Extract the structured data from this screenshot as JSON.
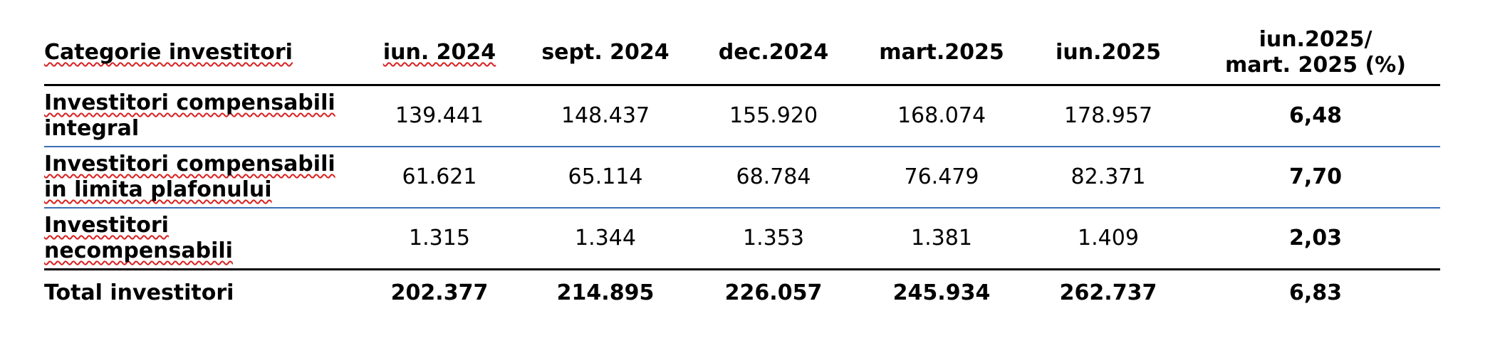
{
  "table": {
    "header": {
      "category": "Categorie investitori",
      "periods": [
        "iun. 2024",
        "sept. 2024",
        "dec.2024",
        "mart.2025",
        "iun.2025"
      ],
      "change_line1": "iun.2025/",
      "change_line2": "mart. 2025 (%)"
    },
    "rows": [
      {
        "label_line1": "Investitori compensabili",
        "label_line2": "integral",
        "values": [
          "139.441",
          "148.437",
          "155.920",
          "168.074",
          "178.957"
        ],
        "change": "6,48"
      },
      {
        "label_line1": "Investitori compensabili",
        "label_line2": "in limita plafonului",
        "values": [
          "61.621",
          "65.114",
          "68.784",
          "76.479",
          "82.371"
        ],
        "change": "7,70"
      },
      {
        "label_line1": "Investitori",
        "label_line2": "necompensabili",
        "values": [
          "1.315",
          "1.344",
          "1.353",
          "1.381",
          "1.409"
        ],
        "change": "2,03"
      }
    ],
    "total": {
      "label": "Total investitori",
      "values": [
        "202.377",
        "214.895",
        "226.057",
        "245.934",
        "262.737"
      ],
      "change": "6,83"
    }
  },
  "colors": {
    "row_divider": "#3a6fb5",
    "spellcheck_underline": "#d92020",
    "rule": "#000000"
  }
}
